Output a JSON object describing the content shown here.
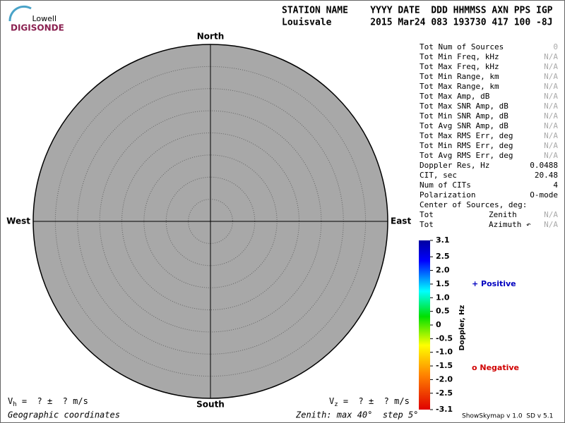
{
  "logo": {
    "top": "Lowell",
    "bottom": "DIGISONDE"
  },
  "header": {
    "labels": "STATION NAME    YYYY DATE  DDD HHMMSS AXN PPS IGP",
    "values": "Louisvale       2015 Mar24 083 193730 417 100 -8J"
  },
  "compass": {
    "north": "North",
    "south": "South",
    "west": "West",
    "east": "East"
  },
  "stats": {
    "rows": [
      [
        "Tot Num of Sources",
        "0"
      ],
      [
        "Tot Min Freq, kHz",
        "N/A"
      ],
      [
        "Tot Max Freq, kHz",
        "N/A"
      ],
      [
        "Tot Min Range, km",
        "N/A"
      ],
      [
        "Tot Max Range, km",
        "N/A"
      ],
      [
        "Tot Max Amp, dB",
        "N/A"
      ],
      [
        "Tot Max SNR Amp, dB",
        "N/A"
      ],
      [
        "Tot Min SNR Amp, dB",
        "N/A"
      ],
      [
        "Tot Avg SNR Amp, dB",
        "N/A"
      ],
      [
        "Tot Max RMS Err, deg",
        "N/A"
      ],
      [
        "Tot Min RMS Err, deg",
        "N/A"
      ],
      [
        "Tot Avg RMS Err, deg",
        "N/A"
      ],
      [
        "Doppler Res, Hz",
        "0.0488"
      ],
      [
        "CIT, sec",
        "20.48"
      ],
      [
        "Num of CITs",
        "4"
      ],
      [
        "Polarization",
        "O-mode"
      ]
    ],
    "center_heading": "Center of Sources, deg:",
    "center_rows": [
      [
        "Tot",
        "Zenith",
        "N/A"
      ],
      [
        "Tot",
        "Azimuth ↶",
        "N/A"
      ]
    ]
  },
  "colorbar": {
    "title": "Doppler, Hz",
    "min": -3.1,
    "max": 3.1,
    "ticks": [
      3.1,
      2.5,
      {
        "value": 2,
        "label": "2.0"
      },
      1.5,
      {
        "value": 1,
        "label": "1.0"
      },
      0.5,
      0,
      -0.5,
      {
        "value": -1,
        "label": "-1.0"
      },
      -1.5,
      {
        "value": -2,
        "label": "-2.0"
      },
      -2.5,
      -3.1
    ]
  },
  "legend": {
    "positive": "+ Positive",
    "negative": "o Negative"
  },
  "footer": {
    "vh": {
      "symbol": "V",
      "subscript": "h",
      "text": " =  ? ±  ? m/s"
    },
    "vz": {
      "symbol": "V",
      "subscript": "z",
      "text": " =  ? ±  ? m/s"
    },
    "coordinates": "Geographic coordinates",
    "zenith": "Zenith: max 40°  step 5°",
    "version": "ShowSkymap v 1.0  SD v 5.1"
  }
}
